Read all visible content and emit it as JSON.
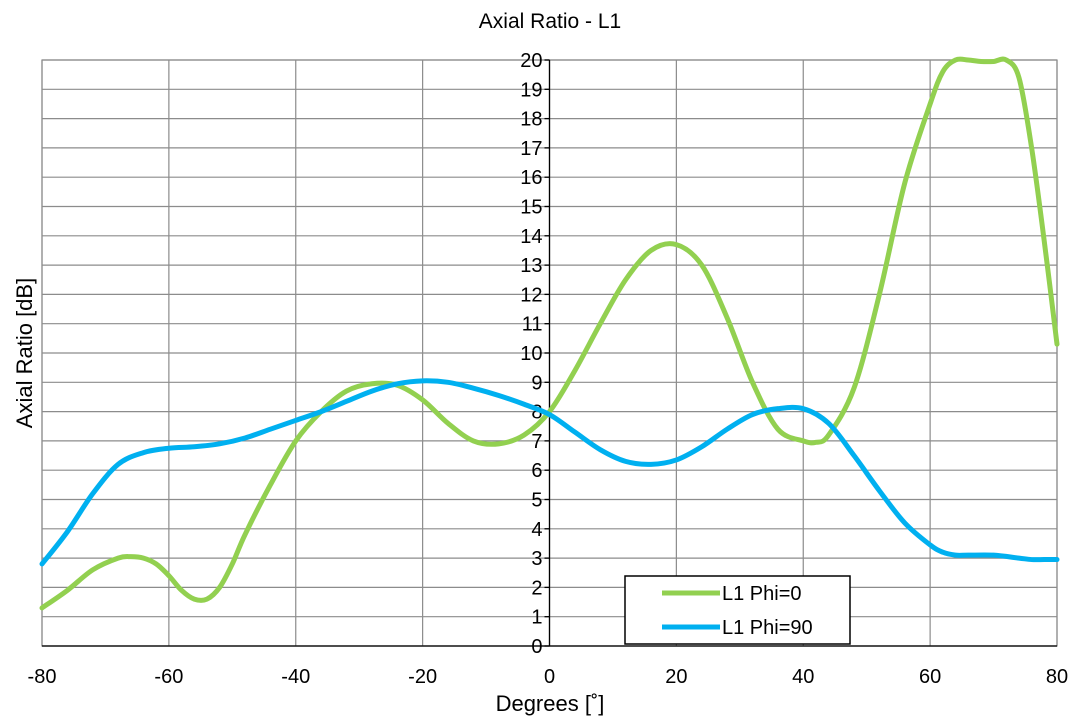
{
  "chart_data": {
    "type": "line",
    "title": "Axial Ratio - L1",
    "xlabel": "Degrees [˚]",
    "ylabel": "Axial Ratio [dB]",
    "xlim": [
      -80,
      80
    ],
    "ylim": [
      0,
      20
    ],
    "x_ticks": [
      "-80",
      "-60",
      "-40",
      "-20",
      "0",
      "20",
      "40",
      "60",
      "80"
    ],
    "y_ticks": [
      "0",
      "1",
      "2",
      "3",
      "4",
      "5",
      "6",
      "7",
      "8",
      "9",
      "10",
      "11",
      "12",
      "13",
      "14",
      "15",
      "16",
      "17",
      "18",
      "19",
      "20"
    ],
    "grid": true,
    "legend_position": "bottom-center",
    "series": [
      {
        "name": "L1 Phi=0",
        "color": "#92D050",
        "x": [
          -80,
          -76,
          -72,
          -68,
          -66,
          -64,
          -62,
          -60,
          -58,
          -56,
          -54,
          -52,
          -50,
          -48,
          -44,
          -40,
          -36,
          -32,
          -28,
          -24,
          -20,
          -16,
          -12,
          -8,
          -4,
          0,
          4,
          8,
          12,
          16,
          20,
          24,
          28,
          32,
          36,
          40,
          42,
          44,
          48,
          52,
          56,
          60,
          62,
          64,
          66,
          68,
          70,
          72,
          74,
          76,
          78,
          80
        ],
        "y": [
          1.3,
          1.9,
          2.6,
          3.0,
          3.05,
          3.0,
          2.8,
          2.4,
          1.9,
          1.6,
          1.6,
          2.0,
          2.8,
          3.8,
          5.5,
          7.0,
          8.0,
          8.7,
          8.95,
          8.9,
          8.4,
          7.6,
          7.0,
          6.9,
          7.2,
          8.0,
          9.4,
          11.0,
          12.5,
          13.5,
          13.7,
          13.0,
          11.2,
          9.0,
          7.4,
          7.0,
          6.95,
          7.2,
          8.8,
          12.0,
          15.8,
          18.5,
          19.6,
          20.0,
          20.0,
          19.95,
          19.95,
          20.0,
          19.4,
          17.0,
          13.8,
          10.3
        ]
      },
      {
        "name": "L1 Phi=90",
        "color": "#00B0F0",
        "x": [
          -80,
          -76,
          -72,
          -68,
          -64,
          -60,
          -56,
          -52,
          -48,
          -44,
          -40,
          -36,
          -32,
          -28,
          -24,
          -20,
          -16,
          -12,
          -8,
          -4,
          0,
          4,
          8,
          12,
          16,
          20,
          24,
          28,
          32,
          36,
          40,
          44,
          48,
          52,
          56,
          60,
          62,
          64,
          66,
          70,
          74,
          76,
          78,
          80
        ],
        "y": [
          2.8,
          3.9,
          5.2,
          6.2,
          6.6,
          6.75,
          6.8,
          6.9,
          7.1,
          7.4,
          7.7,
          8.0,
          8.35,
          8.7,
          8.95,
          9.05,
          9.0,
          8.8,
          8.55,
          8.25,
          7.9,
          7.3,
          6.7,
          6.3,
          6.2,
          6.35,
          6.8,
          7.4,
          7.9,
          8.1,
          8.1,
          7.6,
          6.5,
          5.3,
          4.2,
          3.45,
          3.2,
          3.1,
          3.1,
          3.1,
          3.0,
          2.95,
          2.95,
          2.95
        ]
      }
    ]
  }
}
